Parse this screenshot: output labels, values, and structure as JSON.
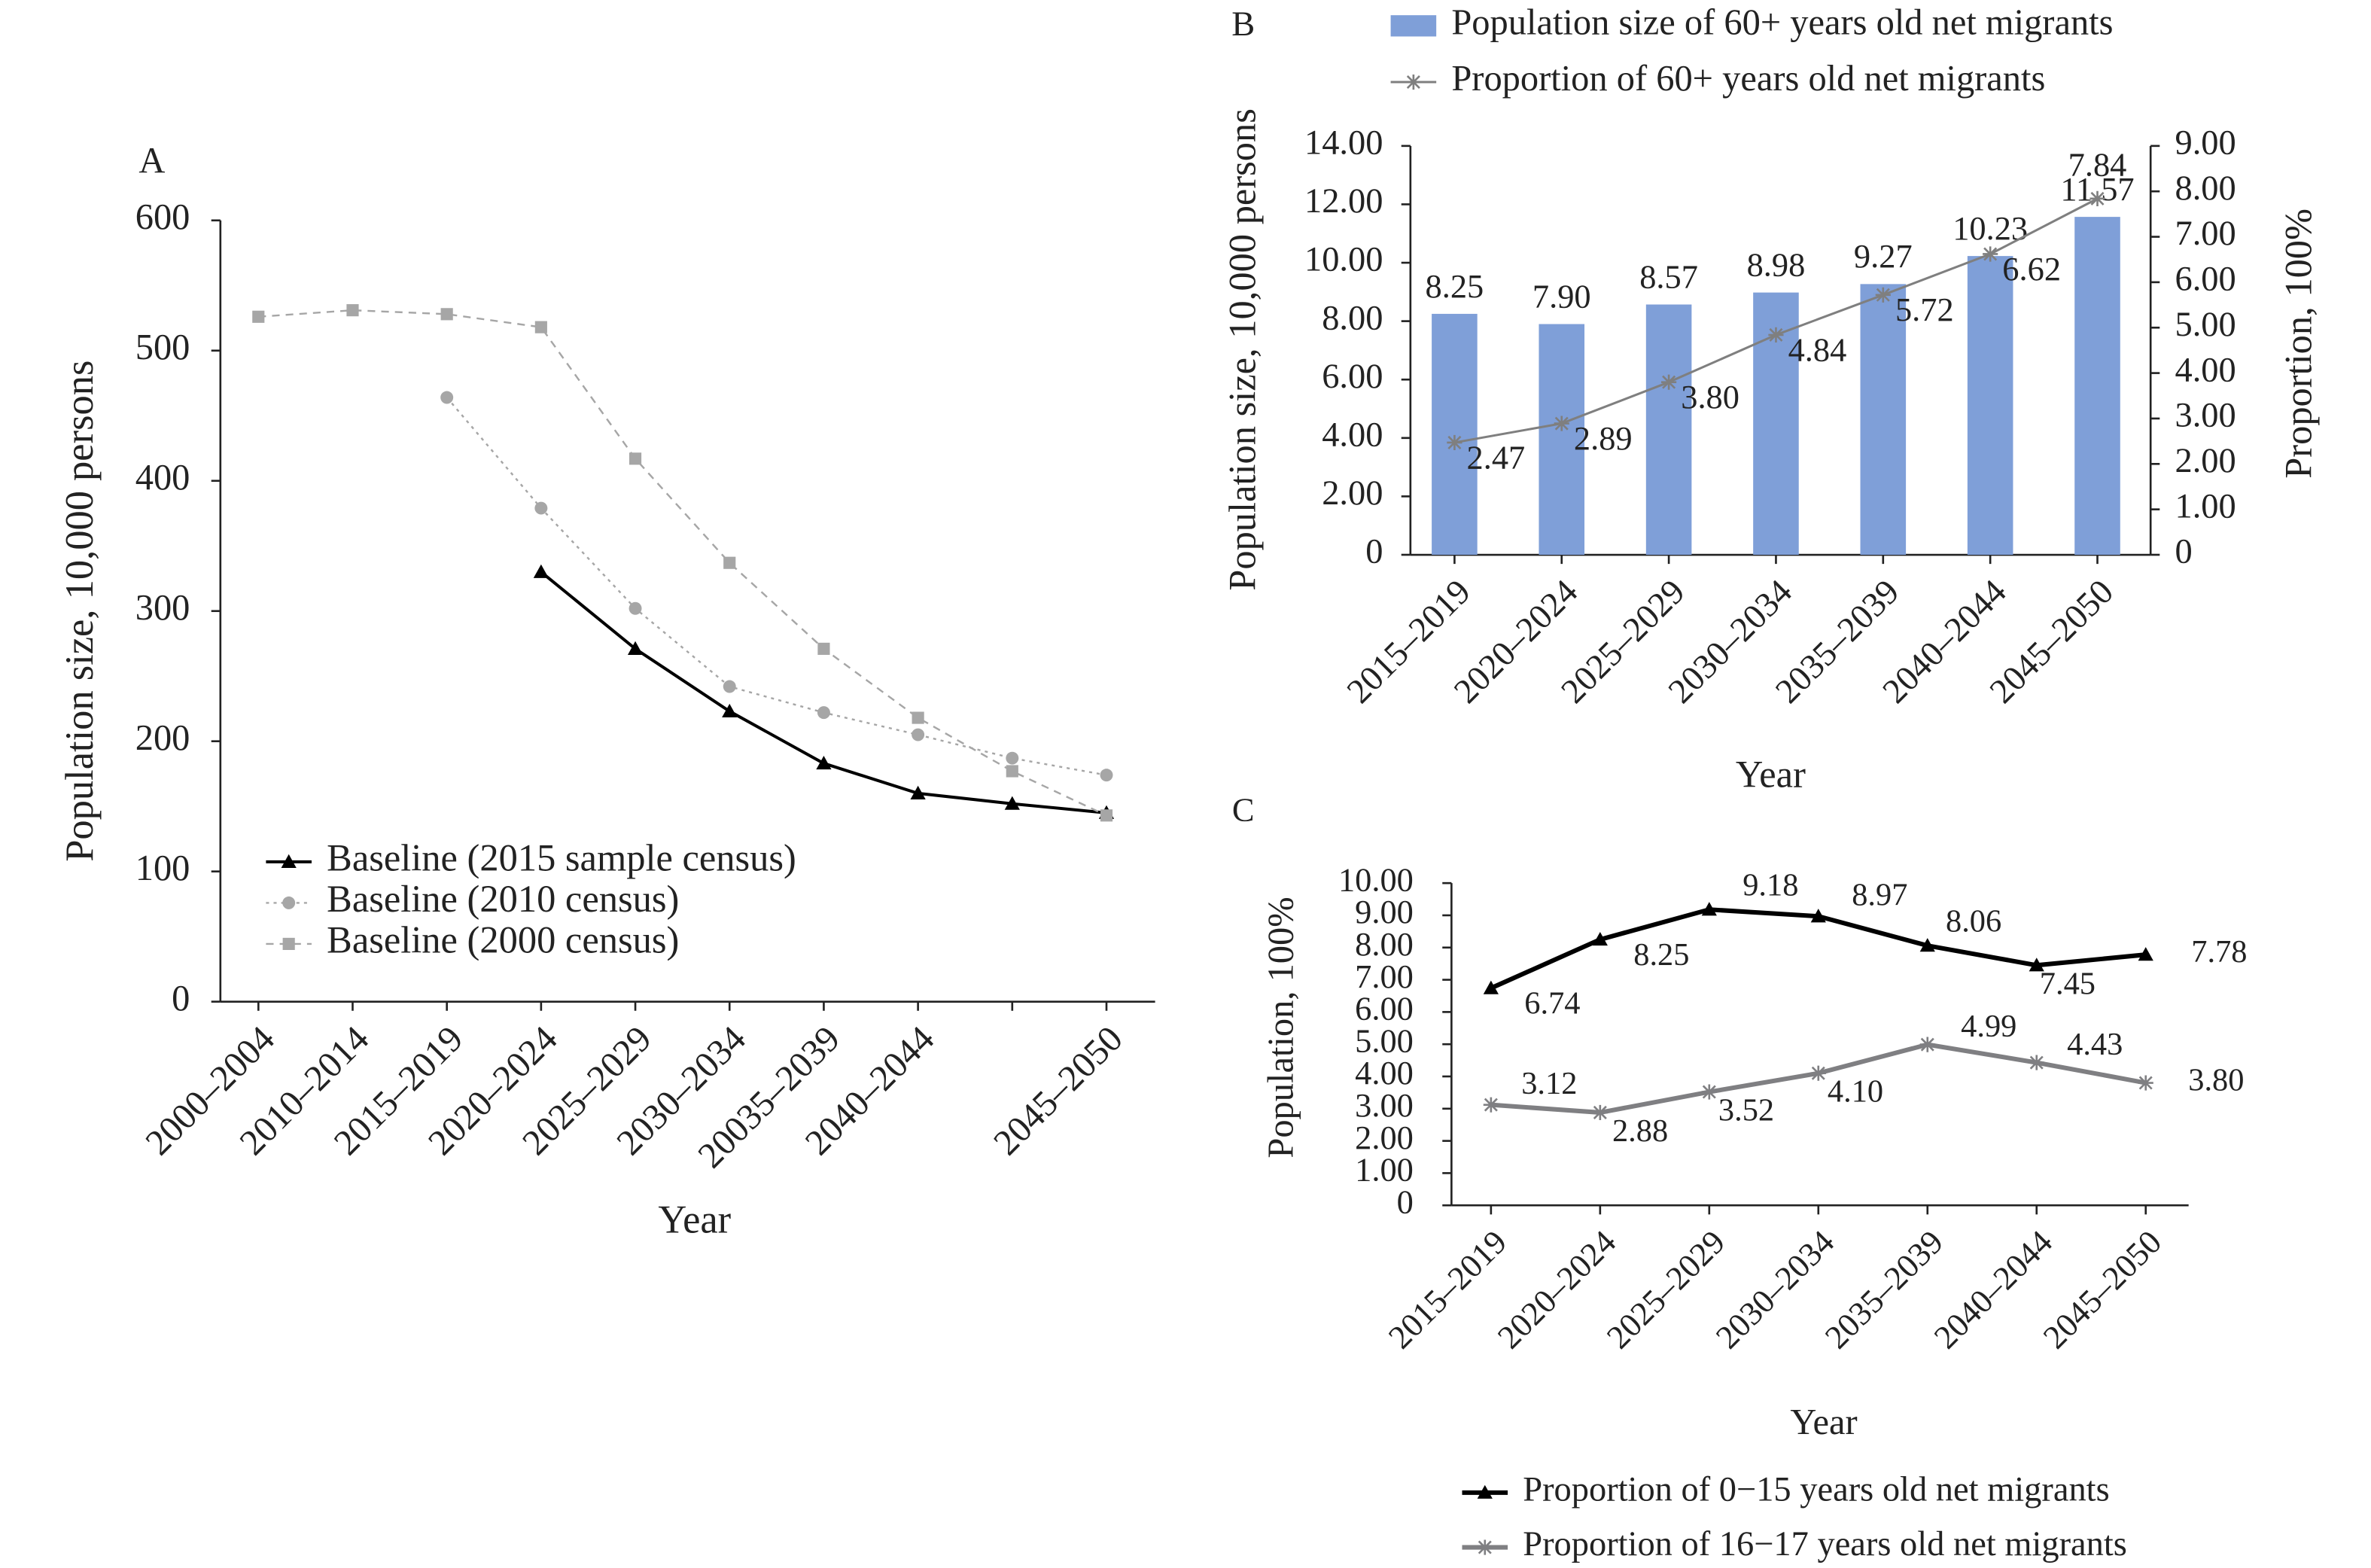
{
  "chart_data": [
    {
      "type": "line",
      "label": "A",
      "ylabel": "Population size, 10,000 persons",
      "xlabel": "Year",
      "categories": [
        "2000–2004",
        "2010–2014",
        "2015–2019",
        "2020–2024",
        "2025–2029",
        "2030–2034",
        "20035–2039",
        "2040–2044",
        null,
        "2045–2050"
      ],
      "ylim": [
        0,
        600
      ],
      "yticks": [
        0,
        100,
        200,
        300,
        400,
        500,
        600
      ],
      "series": [
        {
          "name": "Baseline (2015 sample census)",
          "color": "#000000",
          "marker": "triangle",
          "linestyle": "solid",
          "values": [
            null,
            null,
            null,
            330,
            271,
            223,
            183,
            160,
            152,
            145
          ]
        },
        {
          "name": "Baseline (2010 census)",
          "color": "#a6a6a6",
          "marker": "circle",
          "linestyle": "dotted",
          "values": [
            null,
            null,
            464,
            379,
            302,
            242,
            222,
            205,
            187,
            174
          ]
        },
        {
          "name": "Baseline (2000 census)",
          "color": "#a6a6a6",
          "marker": "square",
          "linestyle": "dashed",
          "values": [
            526,
            531,
            528,
            518,
            417,
            337,
            271,
            218,
            177,
            143
          ]
        }
      ]
    },
    {
      "type": "bar",
      "label": "B",
      "ylabel": "Population size, 10,000 persons",
      "y2label": "Proportion, 100%",
      "xlabel": "Year",
      "categories": [
        "2015–2019",
        "2020–2024",
        "2025–2029",
        "2030–2034",
        "2035–2039",
        "2040–2044",
        "2045–2050"
      ],
      "ylim": [
        0,
        14
      ],
      "yticks": [
        0,
        {
          "value": 2,
          "label": "2.00"
        },
        {
          "value": 4,
          "label": "4.00"
        },
        {
          "value": 6,
          "label": "6.00"
        },
        {
          "value": 8,
          "label": "8.00"
        },
        {
          "value": 10,
          "label": "10.00"
        },
        {
          "value": 12,
          "label": "12.00"
        },
        {
          "value": 14,
          "label": "14.00"
        }
      ],
      "y2lim": [
        0,
        9
      ],
      "y2ticks": [
        0,
        {
          "value": 1,
          "label": "1.00"
        },
        {
          "value": 2,
          "label": "2.00"
        },
        {
          "value": 3,
          "label": "3.00"
        },
        {
          "value": 4,
          "label": "4.00"
        },
        {
          "value": 5,
          "label": "5.00"
        },
        {
          "value": 6,
          "label": "6.00"
        },
        {
          "value": 7,
          "label": "7.00"
        },
        {
          "value": 8,
          "label": "8.00"
        },
        {
          "value": 9,
          "label": "9.00"
        }
      ],
      "series": [
        {
          "name": "Population size of 60+ years old net migrants",
          "type": "bar",
          "color": "#7f9fd8",
          "values": [
            8.25,
            7.9,
            8.57,
            8.98,
            9.27,
            10.23,
            11.57
          ],
          "value_labels": [
            "8.25",
            "7.90",
            "8.57",
            "8.98",
            "9.27",
            "10.23",
            "11.57"
          ]
        },
        {
          "name": "Proportion of 60+ years old net migrants",
          "type": "line",
          "axis": "y2",
          "color": "#7f7f7f",
          "marker": "star",
          "values": [
            2.47,
            2.89,
            3.8,
            4.84,
            5.72,
            6.62,
            7.84
          ],
          "value_labels": [
            "2.47",
            "2.89",
            "3.80",
            "4.84",
            "5.72",
            "6.62",
            "7.84"
          ]
        }
      ]
    },
    {
      "type": "line",
      "label": "C",
      "ylabel": "Population, 100%",
      "xlabel": "Year",
      "categories": [
        "2015–2019",
        "2020–2024",
        "2025–2029",
        "2030–2034",
        "2035–2039",
        "2040–2044",
        "2045–2050"
      ],
      "ylim": [
        0,
        10
      ],
      "yticks": [
        0,
        {
          "value": 1,
          "label": "1.00"
        },
        {
          "value": 2,
          "label": "2.00"
        },
        {
          "value": 3,
          "label": "3.00"
        },
        {
          "value": 4,
          "label": "4.00"
        },
        {
          "value": 5,
          "label": "5.00"
        },
        {
          "value": 6,
          "label": "6.00"
        },
        {
          "value": 7,
          "label": "7.00"
        },
        {
          "value": 8,
          "label": "8.00"
        },
        {
          "value": 9,
          "label": "9.00"
        },
        {
          "value": 10,
          "label": "10.00"
        }
      ],
      "series": [
        {
          "name": "Proportion of 0−15 years old net migrants",
          "color": "#000000",
          "marker": "triangle",
          "linestyle": "solid",
          "values": [
            6.74,
            8.25,
            9.18,
            8.97,
            8.06,
            7.45,
            7.78
          ],
          "value_labels": [
            "6.74",
            "8.25",
            "9.18",
            "8.97",
            "8.06",
            "7.45",
            "7.78"
          ]
        },
        {
          "name": "Proportion of 16−17 years old net migrants",
          "color": "#7f7f82",
          "marker": "star",
          "linestyle": "solid",
          "values": [
            3.12,
            2.88,
            3.52,
            4.1,
            4.99,
            4.43,
            3.8
          ],
          "value_labels": [
            "3.12",
            "2.88",
            "3.52",
            "4.10",
            "4.99",
            "4.43",
            "3.80"
          ]
        }
      ]
    }
  ]
}
